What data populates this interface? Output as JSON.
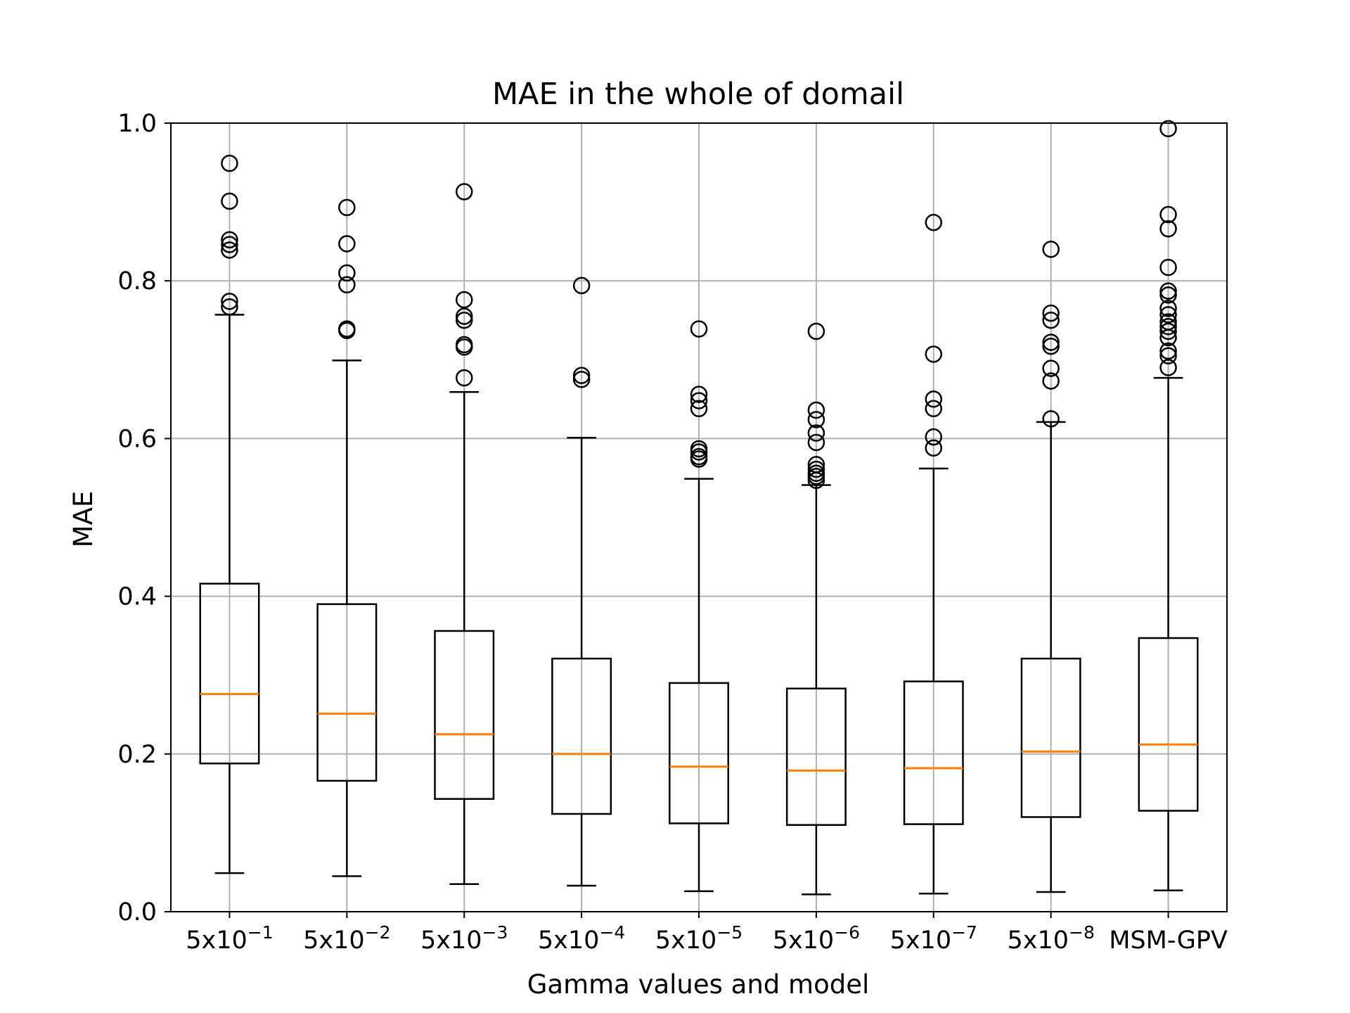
{
  "chart_data": {
    "type": "box",
    "title": "MAE in the whole of domail",
    "xlabel": "Gamma values and model",
    "ylabel": "MAE",
    "ylim": [
      0.0,
      1.0
    ],
    "yticks": [
      "0.0",
      "0.2",
      "0.4",
      "0.6",
      "0.8",
      "1.0"
    ],
    "grid": true,
    "categories": [
      {
        "base": "5x10",
        "exp": "−1"
      },
      {
        "base": "5x10",
        "exp": "−2"
      },
      {
        "base": "5x10",
        "exp": "−3"
      },
      {
        "base": "5x10",
        "exp": "−4"
      },
      {
        "base": "5x10",
        "exp": "−5"
      },
      {
        "base": "5x10",
        "exp": "−6"
      },
      {
        "base": "5x10",
        "exp": "−7"
      },
      {
        "base": "5x10",
        "exp": "−8"
      },
      {
        "base": "MSM-GPV",
        "exp": ""
      }
    ],
    "boxes": [
      {
        "whisker_low": 0.049,
        "q1": 0.188,
        "median": 0.276,
        "q3": 0.416,
        "whisker_high": 0.757,
        "outliers": [
          0.949,
          0.901,
          0.852,
          0.846,
          0.839,
          0.774,
          0.767
        ]
      },
      {
        "whisker_low": 0.045,
        "q1": 0.166,
        "median": 0.251,
        "q3": 0.39,
        "whisker_high": 0.699,
        "outliers": [
          0.893,
          0.847,
          0.81,
          0.795,
          0.739,
          0.737
        ]
      },
      {
        "whisker_low": 0.035,
        "q1": 0.143,
        "median": 0.225,
        "q3": 0.356,
        "whisker_high": 0.659,
        "outliers": [
          0.913,
          0.776,
          0.755,
          0.75,
          0.719,
          0.716,
          0.677
        ]
      },
      {
        "whisker_low": 0.033,
        "q1": 0.124,
        "median": 0.2,
        "q3": 0.321,
        "whisker_high": 0.601,
        "outliers": [
          0.794,
          0.68,
          0.675
        ]
      },
      {
        "whisker_low": 0.026,
        "q1": 0.112,
        "median": 0.184,
        "q3": 0.29,
        "whisker_high": 0.549,
        "outliers": [
          0.739,
          0.656,
          0.648,
          0.638,
          0.587,
          0.583,
          0.577,
          0.574
        ]
      },
      {
        "whisker_low": 0.022,
        "q1": 0.11,
        "median": 0.179,
        "q3": 0.283,
        "whisker_high": 0.541,
        "outliers": [
          0.736,
          0.636,
          0.624,
          0.607,
          0.595,
          0.567,
          0.561,
          0.556,
          0.552,
          0.547
        ]
      },
      {
        "whisker_low": 0.023,
        "q1": 0.111,
        "median": 0.182,
        "q3": 0.292,
        "whisker_high": 0.562,
        "outliers": [
          0.874,
          0.707,
          0.65,
          0.638,
          0.602,
          0.588
        ]
      },
      {
        "whisker_low": 0.025,
        "q1": 0.12,
        "median": 0.203,
        "q3": 0.321,
        "whisker_high": 0.621,
        "outliers": [
          0.84,
          0.759,
          0.75,
          0.722,
          0.717,
          0.689,
          0.673,
          0.625
        ]
      },
      {
        "whisker_low": 0.027,
        "q1": 0.128,
        "median": 0.212,
        "q3": 0.347,
        "whisker_high": 0.677,
        "outliers": [
          0.993,
          0.884,
          0.866,
          0.817,
          0.787,
          0.782,
          0.765,
          0.757,
          0.748,
          0.742,
          0.736,
          0.728,
          0.711,
          0.705,
          0.69
        ]
      }
    ],
    "colors": {
      "box": "#000000",
      "median": "#ff7f0e",
      "grid": "#b0b0b0"
    }
  }
}
